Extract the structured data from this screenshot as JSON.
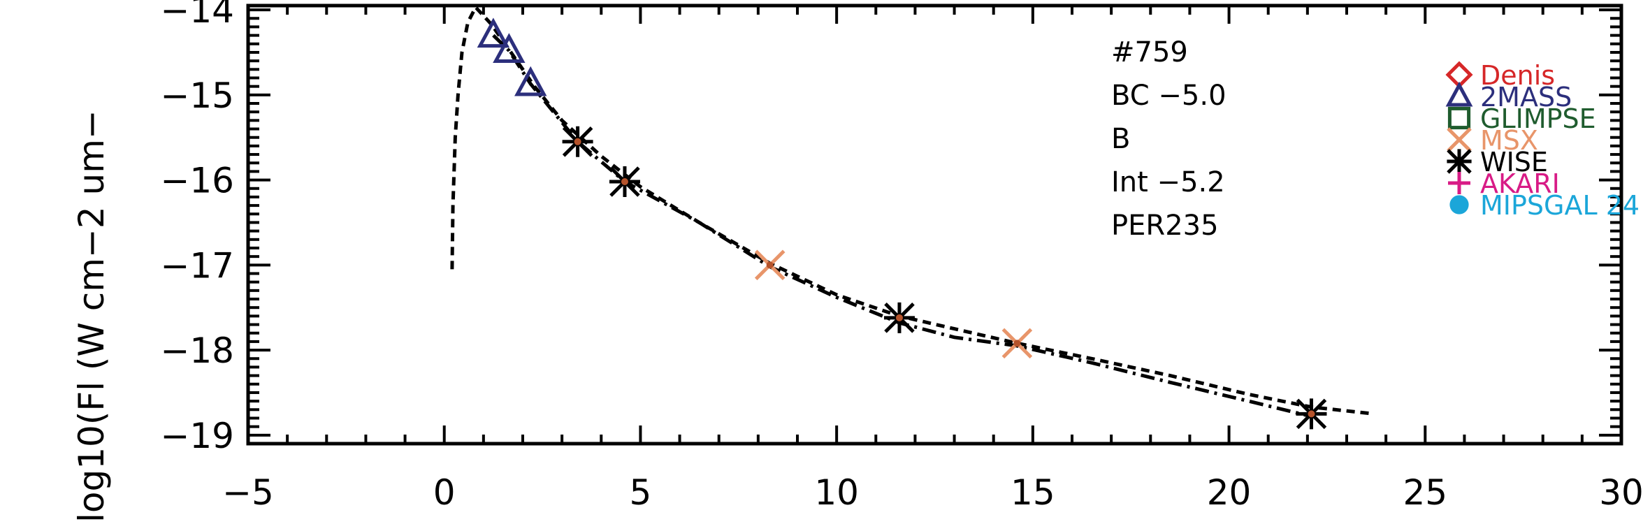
{
  "chart_data": {
    "type": "scatter",
    "title": "",
    "xlabel": "",
    "ylabel": "log10(Fl (W cm−2 um−",
    "xlim": [
      -5,
      30
    ],
    "ylim": [
      -19.1,
      -13.95
    ],
    "x_ticks": [
      -5,
      0,
      5,
      10,
      15,
      20,
      25,
      30
    ],
    "x_tick_labels": [
      "−5",
      "0",
      "5",
      "10",
      "15",
      "20",
      "25",
      "30"
    ],
    "y_ticks": [
      -19,
      -18,
      -17,
      -16,
      -15,
      -14
    ],
    "y_tick_labels": [
      "−19",
      "−18",
      "−17",
      "−16",
      "−15",
      "−14"
    ],
    "grid": false,
    "annotations": [
      "#759",
      "BC −5.0",
      "B",
      "Int −5.2",
      "PER235"
    ],
    "legend": {
      "placement": "top-right",
      "entries": [
        {
          "label": "Denis",
          "marker": "diamond",
          "color": "#d62728"
        },
        {
          "label": "2MASS",
          "marker": "triangle",
          "color": "#2c2f7c"
        },
        {
          "label": "GLIMPSE",
          "marker": "square",
          "color": "#1f5c2e"
        },
        {
          "label": "MSX",
          "marker": "x",
          "color": "#e8956a"
        },
        {
          "label": "WISE",
          "marker": "asterisk",
          "color": "#000000"
        },
        {
          "label": "AKARI",
          "marker": "plus",
          "color": "#d81b86"
        },
        {
          "label": "MIPSGAL 24",
          "marker": "circle",
          "color": "#1ba6d9"
        }
      ]
    },
    "series": [
      {
        "name": "2MASS",
        "marker": "triangle",
        "color": "#2c2f7c",
        "x": [
          1.25,
          1.65,
          2.2
        ],
        "y": [
          -14.3,
          -14.48,
          -14.87
        ]
      },
      {
        "name": "MSX",
        "marker": "x",
        "color": "#e8956a",
        "x": [
          8.3,
          14.6
        ],
        "y": [
          -17.0,
          -17.92
        ]
      },
      {
        "name": "WISE",
        "marker": "asterisk",
        "color": "#000000",
        "x": [
          3.4,
          4.6,
          11.6,
          22.1
        ],
        "y": [
          -15.55,
          -16.02,
          -17.62,
          -18.75
        ]
      }
    ],
    "lines": [
      {
        "style": "dashed",
        "x": [
          0.2,
          0.22,
          0.28,
          0.35,
          0.45,
          0.6,
          0.8,
          1.2,
          1.7,
          2.3,
          3.0,
          4.0,
          5.0,
          6.5,
          8.3,
          10.0,
          11.6,
          13.0,
          14.6,
          16.5,
          18.5,
          20.5,
          22.1,
          23.7
        ],
        "y": [
          -17.05,
          -16.3,
          -15.5,
          -15.0,
          -14.5,
          -14.15,
          -13.97,
          -14.17,
          -14.5,
          -14.9,
          -15.3,
          -15.72,
          -16.08,
          -16.5,
          -16.98,
          -17.35,
          -17.6,
          -17.75,
          -17.92,
          -18.1,
          -18.3,
          -18.52,
          -18.67,
          -18.75
        ]
      },
      {
        "style": "dashdot",
        "x": [
          1.25,
          1.65,
          2.2,
          3.4,
          4.6,
          6.5,
          8.3,
          10.0,
          11.6,
          13.0,
          14.6,
          16.5,
          18.5,
          20.5,
          22.1
        ],
        "y": [
          -14.3,
          -14.48,
          -14.87,
          -15.55,
          -16.02,
          -16.5,
          -17.02,
          -17.38,
          -17.68,
          -17.85,
          -17.95,
          -18.15,
          -18.38,
          -18.6,
          -18.78
        ]
      }
    ]
  }
}
